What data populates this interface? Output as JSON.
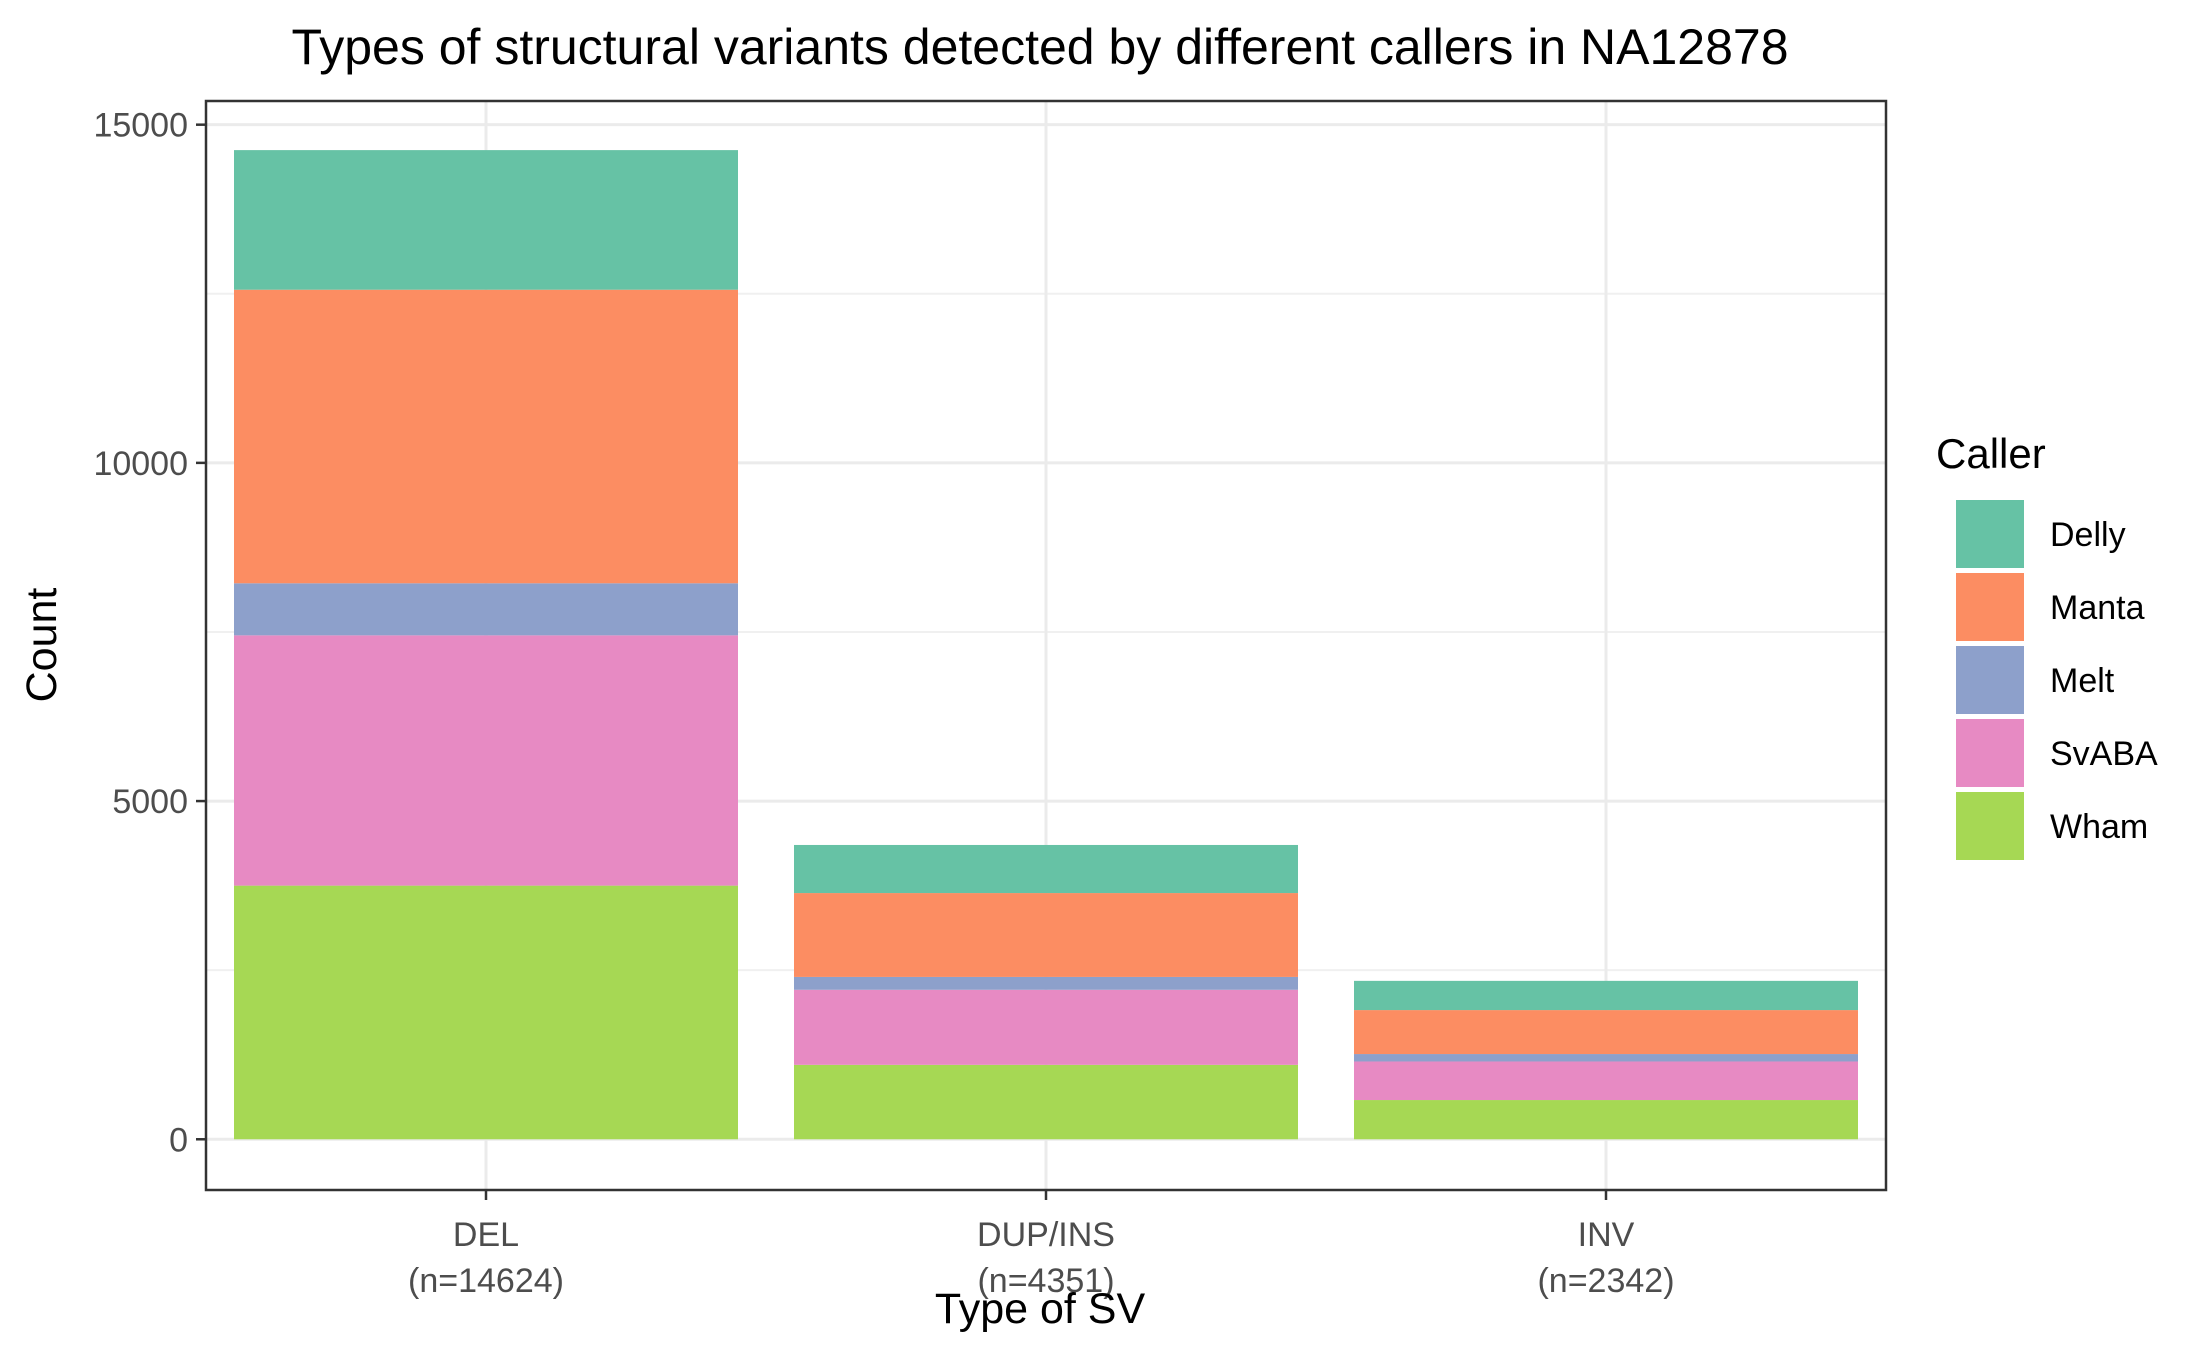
{
  "chart_data": {
    "type": "bar",
    "stacked": true,
    "title": "Types of structural variants detected by different callers in NA12878",
    "xlabel": "Type of SV",
    "ylabel": "Count",
    "categories": [
      "DEL",
      "DUP/INS",
      "INV"
    ],
    "category_counts": [
      "(n=14624)",
      "(n=4351)",
      "(n=2342)"
    ],
    "ylim": [
      -750,
      15350
    ],
    "yticks": [
      0,
      5000,
      10000,
      15000
    ],
    "ytick_labels": [
      "0",
      "5000",
      "10000",
      "15000"
    ],
    "grid": true,
    "legend": {
      "title": "Caller",
      "position": "right"
    },
    "series": [
      {
        "name": "Wham",
        "color": "#a6d854",
        "values": [
          3750,
          1100,
          580
        ]
      },
      {
        "name": "SvABA",
        "color": "#e78ac3",
        "values": [
          3700,
          1110,
          570
        ]
      },
      {
        "name": "Melt",
        "color": "#8da0cb",
        "values": [
          770,
          190,
          110
        ]
      },
      {
        "name": "Manta",
        "color": "#fc8d62",
        "values": [
          4340,
          1240,
          650
        ]
      },
      {
        "name": "Delly",
        "color": "#66c2a5",
        "values": [
          2064,
          711,
          432
        ]
      }
    ],
    "legend_order": [
      "Delly",
      "Manta",
      "Melt",
      "SvABA",
      "Wham"
    ]
  }
}
